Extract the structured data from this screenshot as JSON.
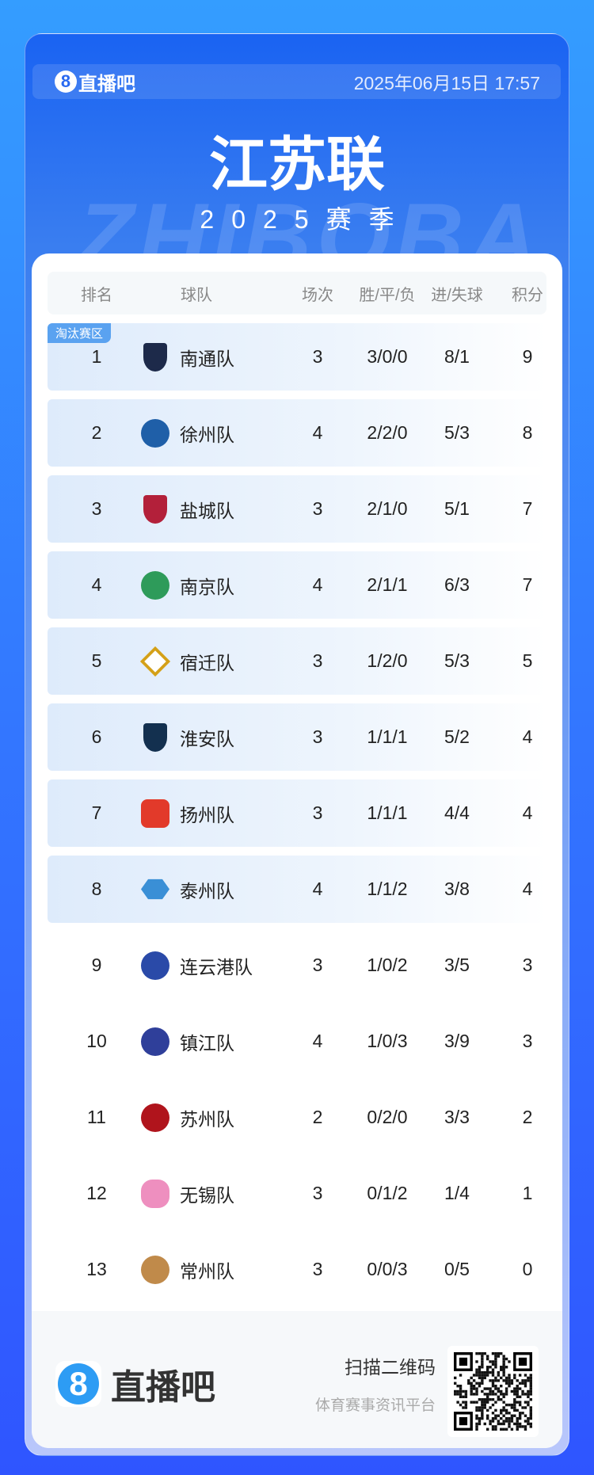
{
  "header": {
    "brand": "直播吧",
    "brand_icon": "8",
    "datetime": "2025年06月15日 17:57"
  },
  "title": "江苏联",
  "season": "2025赛季",
  "watermark": "ZHIBOBA",
  "table": {
    "columns": [
      "排名",
      "球队",
      "场次",
      "胜/平/负",
      "进/失球",
      "积分"
    ],
    "zone_label": "淘汰赛区",
    "rows": [
      {
        "rank": "1",
        "team": "南通队",
        "played": "3",
        "wdl": "3/0/0",
        "goals": "8/1",
        "points": "9",
        "logo_color": "#1d2a4a",
        "logo_shape": "shield",
        "highlight": true
      },
      {
        "rank": "2",
        "team": "徐州队",
        "played": "4",
        "wdl": "2/2/0",
        "goals": "5/3",
        "points": "8",
        "logo_color": "#1f5fa8",
        "logo_shape": "circle",
        "highlight": true
      },
      {
        "rank": "3",
        "team": "盐城队",
        "played": "3",
        "wdl": "2/1/0",
        "goals": "5/1",
        "points": "7",
        "logo_color": "#b3203a",
        "logo_shape": "shield",
        "highlight": true
      },
      {
        "rank": "4",
        "team": "南京队",
        "played": "4",
        "wdl": "2/1/1",
        "goals": "6/3",
        "points": "7",
        "logo_color": "#2e9b5a",
        "logo_shape": "circle",
        "highlight": true
      },
      {
        "rank": "5",
        "team": "宿迁队",
        "played": "3",
        "wdl": "1/2/0",
        "goals": "5/3",
        "points": "5",
        "logo_color": "#d4a017",
        "logo_shape": "diamond",
        "highlight": true
      },
      {
        "rank": "6",
        "team": "淮安队",
        "played": "3",
        "wdl": "1/1/1",
        "goals": "5/2",
        "points": "4",
        "logo_color": "#13304f",
        "logo_shape": "shield",
        "highlight": true
      },
      {
        "rank": "7",
        "team": "扬州队",
        "played": "3",
        "wdl": "1/1/1",
        "goals": "4/4",
        "points": "4",
        "logo_color": "#e23a2a",
        "logo_shape": "square",
        "highlight": true
      },
      {
        "rank": "8",
        "team": "泰州队",
        "played": "4",
        "wdl": "1/1/2",
        "goals": "3/8",
        "points": "4",
        "logo_color": "#3a8fd6",
        "logo_shape": "hex",
        "highlight": true
      },
      {
        "rank": "9",
        "team": "连云港队",
        "played": "3",
        "wdl": "1/0/2",
        "goals": "3/5",
        "points": "3",
        "logo_color": "#2a4aa8",
        "logo_shape": "circle",
        "highlight": false
      },
      {
        "rank": "10",
        "team": "镇江队",
        "played": "4",
        "wdl": "1/0/3",
        "goals": "3/9",
        "points": "3",
        "logo_color": "#2f3f9a",
        "logo_shape": "circle",
        "highlight": false
      },
      {
        "rank": "11",
        "team": "苏州队",
        "played": "2",
        "wdl": "0/2/0",
        "goals": "3/3",
        "points": "2",
        "logo_color": "#b0141c",
        "logo_shape": "circle",
        "highlight": false
      },
      {
        "rank": "12",
        "team": "无锡队",
        "played": "3",
        "wdl": "0/1/2",
        "goals": "1/4",
        "points": "1",
        "logo_color": "#ee8fbf",
        "logo_shape": "flower",
        "highlight": false
      },
      {
        "rank": "13",
        "team": "常州队",
        "played": "3",
        "wdl": "0/0/3",
        "goals": "0/5",
        "points": "0",
        "logo_color": "#c08a4a",
        "logo_shape": "circle",
        "highlight": false
      }
    ]
  },
  "footer": {
    "brand": "直播吧",
    "brand_icon": "8",
    "scan_text": "扫描二维码",
    "tagline": "体育赛事资讯平台"
  }
}
